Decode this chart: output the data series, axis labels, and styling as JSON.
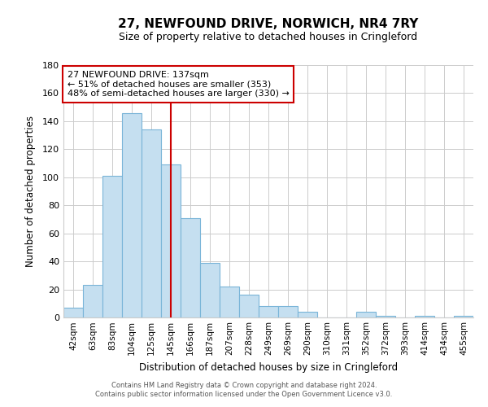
{
  "title": "27, NEWFOUND DRIVE, NORWICH, NR4 7RY",
  "subtitle": "Size of property relative to detached houses in Cringleford",
  "xlabel": "Distribution of detached houses by size in Cringleford",
  "ylabel": "Number of detached properties",
  "bin_labels": [
    "42sqm",
    "63sqm",
    "83sqm",
    "104sqm",
    "125sqm",
    "145sqm",
    "166sqm",
    "187sqm",
    "207sqm",
    "228sqm",
    "249sqm",
    "269sqm",
    "290sqm",
    "310sqm",
    "331sqm",
    "352sqm",
    "372sqm",
    "393sqm",
    "414sqm",
    "434sqm",
    "455sqm"
  ],
  "bar_values": [
    7,
    23,
    101,
    146,
    134,
    109,
    71,
    39,
    22,
    16,
    8,
    8,
    4,
    0,
    0,
    4,
    1,
    0,
    1,
    0,
    1
  ],
  "bar_color": "#c5dff0",
  "bar_edge_color": "#7ab5d8",
  "vline_x_idx": 5,
  "vline_color": "#cc0000",
  "annotation_title": "27 NEWFOUND DRIVE: 137sqm",
  "annotation_line1": "← 51% of detached houses are smaller (353)",
  "annotation_line2": "48% of semi-detached houses are larger (330) →",
  "annotation_box_color": "#ffffff",
  "annotation_box_edge": "#cc0000",
  "ylim": [
    0,
    180
  ],
  "yticks": [
    0,
    20,
    40,
    60,
    80,
    100,
    120,
    140,
    160,
    180
  ],
  "footer1": "Contains HM Land Registry data © Crown copyright and database right 2024.",
  "footer2": "Contains public sector information licensed under the Open Government Licence v3.0.",
  "bg_color": "#ffffff",
  "grid_color": "#cccccc"
}
